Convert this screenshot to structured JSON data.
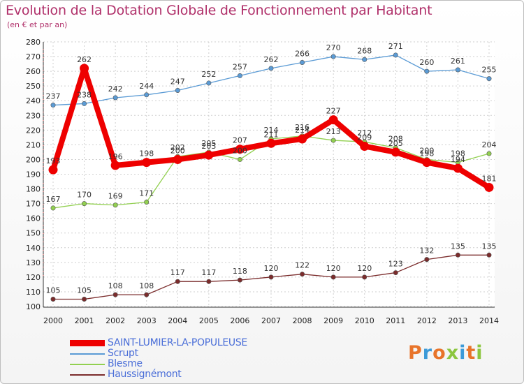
{
  "header": {
    "title": "Evolution de la Dotation Globale de Fonctionnement par Habitant",
    "subtitle": "(en € et par an)"
  },
  "brand": {
    "logo_text": "Proxiti",
    "letter_colors": [
      "#e8742a",
      "#3c9ad8",
      "#e8742a",
      "#8cc63f",
      "#3c9ad8",
      "#e8742a",
      "#8cc63f"
    ]
  },
  "chart_data": {
    "type": "line",
    "title": "Evolution de la Dotation Globale de Fonctionnement par Habitant",
    "subtitle": "(en € et par an)",
    "x": [
      "2000",
      "2001",
      "2002",
      "2003",
      "2004",
      "2005",
      "2006",
      "2007",
      "2008",
      "2009",
      "2010",
      "2011",
      "2012",
      "2013",
      "2014"
    ],
    "ylim": [
      100,
      280
    ],
    "yticks": [
      100,
      110,
      120,
      130,
      140,
      150,
      160,
      170,
      180,
      190,
      200,
      210,
      220,
      230,
      240,
      250,
      260,
      270,
      280
    ],
    "grid": true,
    "legend_position": "bottom-left",
    "series": [
      {
        "name": "SAINT-LUMIER-LA-POPULEUSE",
        "color": "#ee0000",
        "highlight": true,
        "values": [
          193,
          262,
          196,
          198,
          200,
          203,
          207,
          211,
          214,
          227,
          209,
          205,
          198,
          194,
          181
        ]
      },
      {
        "name": "Scrupt",
        "color": "#5b9bd5",
        "values": [
          237,
          238,
          242,
          244,
          247,
          252,
          257,
          262,
          266,
          270,
          268,
          271,
          260,
          261,
          255
        ]
      },
      {
        "name": "Blesme",
        "color": "#92d050",
        "values": [
          167,
          170,
          169,
          171,
          202,
          205,
          200,
          214,
          216,
          213,
          212,
          208,
          200,
          198,
          204
        ]
      },
      {
        "name": "Haussignémont",
        "color": "#7b2c2c",
        "values": [
          105,
          105,
          108,
          108,
          117,
          117,
          118,
          120,
          122,
          120,
          120,
          123,
          132,
          135,
          135
        ]
      }
    ]
  }
}
